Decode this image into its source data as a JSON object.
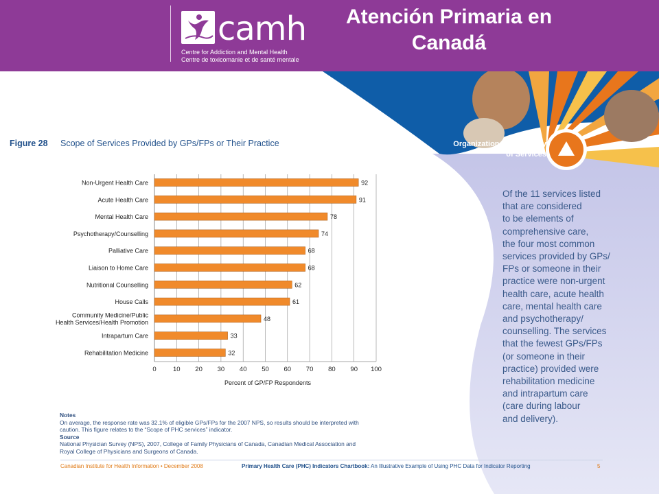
{
  "header": {
    "title": "Atención Primaria en Canadá",
    "logo": {
      "wordmark": "camh",
      "subline_en": "Centre for Addiction and Mental Health",
      "subline_fr": "Centre de toxicomanie et de santé mentale"
    },
    "colors": {
      "band": "#8e3a97"
    }
  },
  "banner": {
    "label": "Organization and Delivery\nof Services",
    "icon": "triangle-up-icon",
    "colors": {
      "blue": "#0f5da8",
      "orange": "#e8761c",
      "lavender": "#c8c9e9"
    }
  },
  "figure": {
    "number": "Figure 28",
    "title": "Scope of Services Provided by GPs/FPs or Their Practice"
  },
  "chart_data": {
    "type": "bar",
    "orientation": "horizontal",
    "categories": [
      "Non-Urgent Health Care",
      "Acute Health Care",
      "Mental Health Care",
      "Psychotherapy/Counselling",
      "Palliative Care",
      "Liaison to Home Care",
      "Nutritional Counselling",
      "House Calls",
      "Community Medicine/Public Health Services/Health Promotion",
      "Intrapartum Care",
      "Rehabilitation Medicine"
    ],
    "category_lines": [
      [
        "Non-Urgent Health Care"
      ],
      [
        "Acute Health Care"
      ],
      [
        "Mental Health Care"
      ],
      [
        "Psychotherapy/Counselling"
      ],
      [
        "Palliative Care"
      ],
      [
        "Liaison to Home Care"
      ],
      [
        "Nutritional Counselling"
      ],
      [
        "House Calls"
      ],
      [
        "Community Medicine/Public",
        "Health Services/Health Promotion"
      ],
      [
        "Intrapartum Care"
      ],
      [
        "Rehabilitation Medicine"
      ]
    ],
    "values": [
      92,
      91,
      78,
      74,
      68,
      68,
      62,
      61,
      48,
      33,
      32
    ],
    "xlabel": "Percent of GP/FP Respondents",
    "ylabel": "",
    "xlim": [
      0,
      100
    ],
    "xticks": [
      0,
      10,
      20,
      30,
      40,
      50,
      60,
      70,
      80,
      90,
      100
    ],
    "grid": "vertical",
    "bar_color": "#f08a2b"
  },
  "description": "Of the 11 services listed\nthat are considered\nto be elements of\ncomprehensive care,\nthe four most common\nservices provided by GPs/\nFPs or someone in their\npractice were non-urgent\nhealth care, acute health\ncare, mental health care\nand psychotherapy/\ncounselling. The services\nthat the fewest GPs/FPs\n(or someone in their\npractice) provided were\nrehabilitation medicine\nand intrapartum care\n(care during labour\nand delivery).",
  "notes": {
    "notes_heading": "Notes",
    "notes_text": "On average, the response rate was 32.1% of eligible GPs/FPs for the 2007 NPS, so results should be interpreted with caution. This figure relates to the “Scope of PHC services” indicator.",
    "source_heading": "Source",
    "source_text": "National Physician Survey (NPS), 2007, College of Family Physicians of Canada, Canadian Medical Association and Royal College of Physicians and Surgeons of Canada."
  },
  "footer": {
    "left": "Canadian Institute for Health Information • December 2008",
    "center_bold": "Primary Health Care (PHC) Indicators Chartbook:",
    "center_rest": " An Illustrative Example of Using PHC Data for Indicator Reporting",
    "page": "5"
  }
}
